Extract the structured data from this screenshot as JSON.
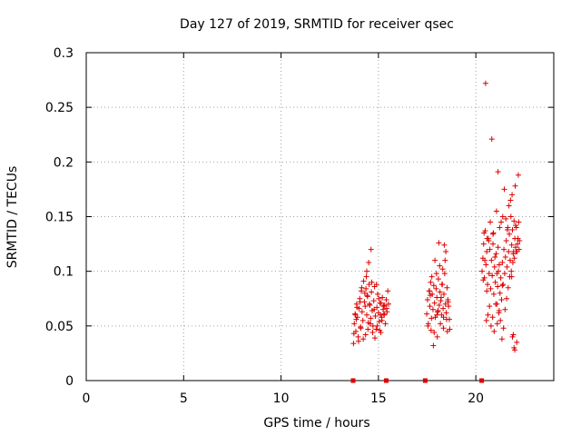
{
  "chart_data": {
    "type": "scatter",
    "title": "Day 127 of 2019, SRMTID for receiver qsec",
    "xlabel": "GPS time / hours",
    "ylabel": "SRMTID / TECUs",
    "xlim": [
      0,
      24
    ],
    "ylim": [
      0,
      0.3
    ],
    "xticks": [
      0,
      5,
      10,
      15,
      20
    ],
    "yticks": [
      0,
      0.05,
      0.1,
      0.15,
      0.2,
      0.25,
      0.3
    ],
    "xtick_labels": [
      "0",
      "5",
      "10",
      "15",
      "20"
    ],
    "ytick_labels": [
      "0",
      "0.05",
      "0.1",
      "0.15",
      "0.2",
      "0.25",
      "0.3"
    ],
    "grid": true,
    "marker": "+",
    "color": "#dd0000",
    "series": [
      {
        "name": "SRMTID",
        "x": [
          13.72,
          13.76,
          13.8,
          13.84,
          13.88,
          13.92,
          13.96,
          14.0,
          14.04,
          14.08,
          14.12,
          14.16,
          14.2,
          14.24,
          14.28,
          14.32,
          14.36,
          14.4,
          14.44,
          14.48,
          14.52,
          14.56,
          14.6,
          14.64,
          14.68,
          14.72,
          14.76,
          14.8,
          14.84,
          14.88,
          14.92,
          14.96,
          15.0,
          15.04,
          15.08,
          15.12,
          15.16,
          15.2,
          15.24,
          15.28,
          15.32,
          15.36,
          15.4,
          15.44,
          15.48,
          15.52,
          13.74,
          13.86,
          13.98,
          14.1,
          14.22,
          14.34,
          14.46,
          14.58,
          14.7,
          14.82,
          14.94,
          15.06,
          15.18,
          15.3,
          15.42,
          13.82,
          14.06,
          14.3,
          14.54,
          14.78,
          15.02,
          15.26,
          14.4,
          14.5,
          14.38,
          14.62,
          14.9,
          15.14,
          13.9,
          14.14,
          14.42,
          14.66,
          15.1,
          17.48,
          17.52,
          17.56,
          17.6,
          17.64,
          17.68,
          17.72,
          17.76,
          17.8,
          17.84,
          17.88,
          17.92,
          17.96,
          18.0,
          18.04,
          18.08,
          18.12,
          18.16,
          18.2,
          18.24,
          18.28,
          18.32,
          18.36,
          18.4,
          18.44,
          18.48,
          18.52,
          18.56,
          18.6,
          18.64,
          17.54,
          17.7,
          17.86,
          18.02,
          18.18,
          18.34,
          18.5,
          18.66,
          17.62,
          17.9,
          18.1,
          18.3,
          18.46,
          17.74,
          17.98,
          18.22,
          18.42,
          18.06,
          18.26,
          18.14,
          18.38,
          18.58,
          17.66,
          17.82,
          18.0,
          18.34,
          18.54,
          20.32,
          20.36,
          20.4,
          20.44,
          20.48,
          20.52,
          20.56,
          20.6,
          20.64,
          20.68,
          20.72,
          20.76,
          20.8,
          20.84,
          20.88,
          20.92,
          20.96,
          21.0,
          21.04,
          21.08,
          21.12,
          21.16,
          21.2,
          21.24,
          21.28,
          21.32,
          21.36,
          21.4,
          21.44,
          21.48,
          21.52,
          21.56,
          21.6,
          21.64,
          21.68,
          21.72,
          21.76,
          21.8,
          21.84,
          21.88,
          21.92,
          21.96,
          22.0,
          22.04,
          22.08,
          22.12,
          22.16,
          22.2,
          22.24,
          20.38,
          20.46,
          20.54,
          20.62,
          20.7,
          20.78,
          20.86,
          20.94,
          21.02,
          21.1,
          21.18,
          21.26,
          21.34,
          21.42,
          21.5,
          21.58,
          21.66,
          21.74,
          21.82,
          21.9,
          21.98,
          22.06,
          22.14,
          22.22,
          20.42,
          20.58,
          20.74,
          20.9,
          21.06,
          21.22,
          21.38,
          21.54,
          21.7,
          21.86,
          22.02,
          22.18,
          20.5,
          20.82,
          21.14,
          21.46,
          21.78,
          22.1,
          21.92,
          21.96,
          22.0,
          21.88,
          21.84,
          20.56,
          20.66,
          20.98,
          21.3,
          21.62,
          22.04,
          21.2,
          21.14,
          20.88,
          21.08,
          21.36,
          21.94
        ],
        "y": [
          0.034,
          0.052,
          0.061,
          0.045,
          0.07,
          0.058,
          0.04,
          0.066,
          0.075,
          0.049,
          0.082,
          0.063,
          0.055,
          0.091,
          0.072,
          0.068,
          0.084,
          0.06,
          0.077,
          0.053,
          0.088,
          0.069,
          0.057,
          0.081,
          0.064,
          0.05,
          0.073,
          0.086,
          0.059,
          0.047,
          0.067,
          0.079,
          0.062,
          0.054,
          0.071,
          0.044,
          0.058,
          0.076,
          0.065,
          0.061,
          0.069,
          0.052,
          0.074,
          0.063,
          0.082,
          0.07,
          0.043,
          0.056,
          0.036,
          0.048,
          0.038,
          0.042,
          0.047,
          0.052,
          0.044,
          0.039,
          0.05,
          0.046,
          0.055,
          0.06,
          0.066,
          0.06,
          0.072,
          0.08,
          0.07,
          0.065,
          0.075,
          0.068,
          0.1,
          0.108,
          0.095,
          0.12,
          0.088,
          0.071,
          0.067,
          0.085,
          0.078,
          0.09,
          0.06,
          0.061,
          0.074,
          0.052,
          0.082,
          0.068,
          0.09,
          0.057,
          0.079,
          0.065,
          0.087,
          0.071,
          0.058,
          0.084,
          0.076,
          0.063,
          0.093,
          0.069,
          0.081,
          0.073,
          0.06,
          0.088,
          0.066,
          0.079,
          0.098,
          0.07,
          0.062,
          0.085,
          0.074,
          0.068,
          0.056,
          0.05,
          0.046,
          0.044,
          0.04,
          0.052,
          0.048,
          0.056,
          0.047,
          0.082,
          0.11,
          0.126,
          0.102,
          0.118,
          0.095,
          0.098,
          0.076,
          0.11,
          0.064,
          0.088,
          0.105,
          0.124,
          0.072,
          0.078,
          0.032,
          0.06,
          0.058,
          0.045,
          0.1,
          0.112,
          0.125,
          0.094,
          0.137,
          0.106,
          0.118,
          0.088,
          0.13,
          0.098,
          0.12,
          0.084,
          0.11,
          0.096,
          0.125,
          0.079,
          0.104,
          0.09,
          0.116,
          0.07,
          0.086,
          0.1,
          0.064,
          0.08,
          0.094,
          0.074,
          0.108,
          0.088,
          0.12,
          0.098,
          0.113,
          0.128,
          0.104,
          0.14,
          0.118,
          0.134,
          0.11,
          0.15,
          0.124,
          0.138,
          0.116,
          0.146,
          0.13,
          0.122,
          0.14,
          0.118,
          0.13,
          0.145,
          0.128,
          0.092,
          0.11,
          0.055,
          0.06,
          0.068,
          0.05,
          0.058,
          0.045,
          0.07,
          0.052,
          0.062,
          0.055,
          0.038,
          0.048,
          0.065,
          0.075,
          0.085,
          0.095,
          0.1,
          0.108,
          0.112,
          0.118,
          0.125,
          0.12,
          0.135,
          0.13,
          0.145,
          0.135,
          0.155,
          0.14,
          0.15,
          0.148,
          0.16,
          0.17,
          0.178,
          0.188,
          0.272,
          0.221,
          0.191,
          0.175,
          0.165,
          0.035,
          0.042,
          0.03,
          0.028,
          0.04,
          0.095,
          0.082,
          0.128,
          0.113,
          0.145,
          0.138,
          0.142,
          0.106,
          0.122,
          0.134,
          0.098,
          0.087,
          0.118
        ]
      }
    ],
    "baseline_markers": {
      "y": 0,
      "x": [
        13.7,
        15.4,
        17.4,
        20.3
      ],
      "color": "#dd0000"
    }
  }
}
